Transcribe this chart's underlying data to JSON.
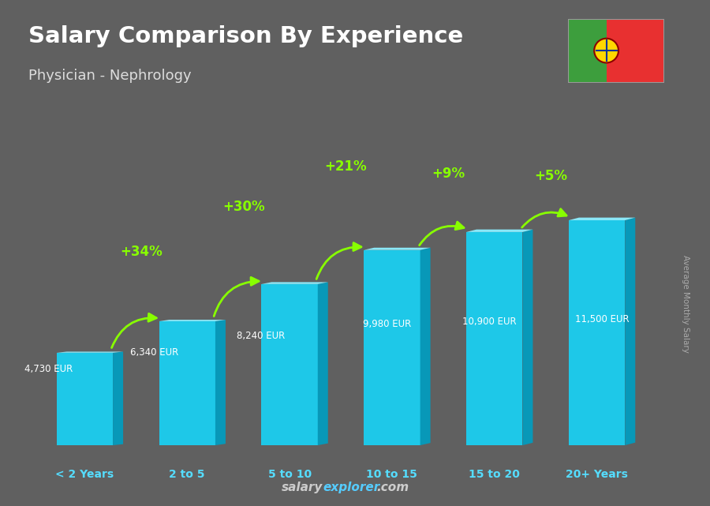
{
  "title": "Salary Comparison By Experience",
  "subtitle": "Physician - Nephrology",
  "categories": [
    "< 2 Years",
    "2 to 5",
    "5 to 10",
    "10 to 15",
    "15 to 20",
    "20+ Years"
  ],
  "values": [
    4730,
    6340,
    8240,
    9980,
    10900,
    11500
  ],
  "labels": [
    "4,730 EUR",
    "6,340 EUR",
    "8,240 EUR",
    "9,980 EUR",
    "10,900 EUR",
    "11,500 EUR"
  ],
  "pct_changes": [
    "+34%",
    "+30%",
    "+21%",
    "+9%",
    "+5%"
  ],
  "bar_color_face": "#1EC8E8",
  "bar_color_light": "#8AE8F8",
  "bar_color_dark": "#0898B8",
  "background_color": "#606060",
  "title_color": "#ffffff",
  "subtitle_color": "#dddddd",
  "label_color": "#ffffff",
  "pct_color": "#88ff00",
  "xlabel_color": "#55ddff",
  "ylabel_text": "Average Monthly Salary",
  "footer_salary_color": "#cccccc",
  "footer_explorer_color": "#55ccff",
  "ylim": [
    0,
    15000
  ],
  "flag_green": "#3d9e3d",
  "flag_red": "#e83030",
  "flag_gold": "#FFD700"
}
